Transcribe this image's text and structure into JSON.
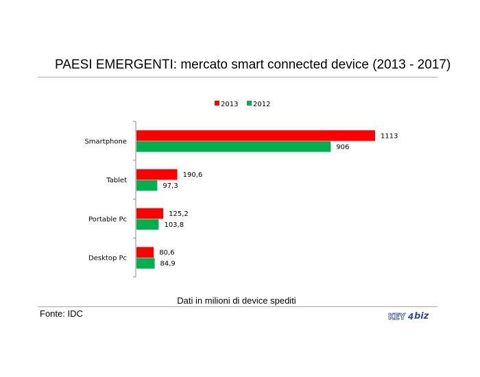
{
  "title": "PAESI EMERGENTI: mercato smart connected device (2013 - 2017)",
  "footnote": "Dati in milioni di device spediti",
  "source": "Fonte: IDC",
  "logo": {
    "key": "KEY",
    "four": "4",
    "biz": "biz"
  },
  "colors": {
    "2013": "#ff0000",
    "2012": "#00b050"
  },
  "chart_data": {
    "type": "bar",
    "orientation": "horizontal",
    "categories": [
      "Smartphone",
      "Tablet",
      "Portable Pc",
      "Desktop Pc"
    ],
    "series": [
      {
        "name": "2013",
        "values": [
          1113,
          190.6,
          125.2,
          80.6
        ],
        "labels": [
          "1113",
          "190,6",
          "125,2",
          "80,6"
        ]
      },
      {
        "name": "2012",
        "values": [
          906,
          97.3,
          103.8,
          84.9
        ],
        "labels": [
          "906",
          "97,3",
          "103,8",
          "84,9"
        ]
      }
    ],
    "legend": {
      "position": "top",
      "entries": [
        "2013",
        "2012"
      ]
    },
    "grid": false,
    "xlim": [
      0,
      1113
    ]
  }
}
